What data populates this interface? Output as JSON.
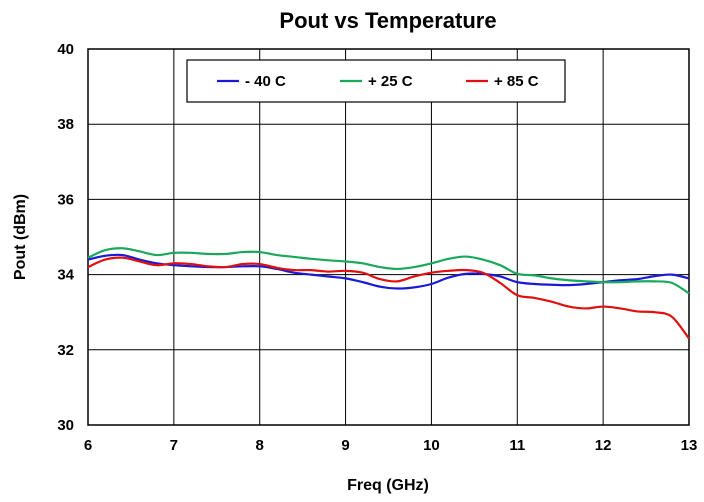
{
  "chart_data": {
    "type": "line",
    "title": "Pout vs Temperature",
    "xlabel": "Freq (GHz)",
    "ylabel": "Pout (dBm)",
    "xlim": [
      6,
      13
    ],
    "ylim": [
      30,
      40
    ],
    "xticks": [
      "6",
      "7",
      "8",
      "9",
      "10",
      "11",
      "12",
      "13"
    ],
    "yticks": [
      "30",
      "32",
      "34",
      "36",
      "38",
      "40"
    ],
    "grid": true,
    "legend_position": "top-center",
    "series": [
      {
        "name": "- 40 C",
        "color": "#1a1ad6",
        "x": [
          6.0,
          6.2,
          6.4,
          6.6,
          6.8,
          7.0,
          7.2,
          7.4,
          7.6,
          7.8,
          8.0,
          8.2,
          8.4,
          8.6,
          8.8,
          9.0,
          9.2,
          9.4,
          9.6,
          9.8,
          10.0,
          10.2,
          10.4,
          10.6,
          10.8,
          11.0,
          11.2,
          11.4,
          11.6,
          11.8,
          12.0,
          12.2,
          12.4,
          12.6,
          12.8,
          13.0
        ],
        "y": [
          34.4,
          34.5,
          34.52,
          34.4,
          34.3,
          34.25,
          34.22,
          34.2,
          34.2,
          34.22,
          34.22,
          34.15,
          34.05,
          34.0,
          33.95,
          33.9,
          33.8,
          33.68,
          33.63,
          33.66,
          33.75,
          33.92,
          34.02,
          34.02,
          33.95,
          33.8,
          33.75,
          33.73,
          33.72,
          33.75,
          33.8,
          33.85,
          33.88,
          33.96,
          34.0,
          33.9
        ]
      },
      {
        "name": "+ 25 C",
        "color": "#1aa85a",
        "x": [
          6.0,
          6.2,
          6.4,
          6.6,
          6.8,
          7.0,
          7.2,
          7.4,
          7.6,
          7.8,
          8.0,
          8.2,
          8.4,
          8.6,
          8.8,
          9.0,
          9.2,
          9.4,
          9.6,
          9.8,
          10.0,
          10.2,
          10.4,
          10.6,
          10.8,
          11.0,
          11.2,
          11.4,
          11.6,
          11.8,
          12.0,
          12.2,
          12.4,
          12.6,
          12.8,
          13.0
        ],
        "y": [
          34.45,
          34.65,
          34.7,
          34.62,
          34.52,
          34.58,
          34.58,
          34.55,
          34.55,
          34.6,
          34.6,
          34.52,
          34.47,
          34.42,
          34.38,
          34.35,
          34.3,
          34.2,
          34.15,
          34.2,
          34.3,
          34.42,
          34.48,
          34.4,
          34.25,
          34.02,
          33.98,
          33.9,
          33.85,
          33.82,
          33.8,
          33.8,
          33.82,
          33.82,
          33.78,
          33.5
        ]
      },
      {
        "name": "+ 85 C",
        "color": "#e01010",
        "x": [
          6.0,
          6.2,
          6.4,
          6.6,
          6.8,
          7.0,
          7.2,
          7.4,
          7.6,
          7.8,
          8.0,
          8.2,
          8.4,
          8.6,
          8.8,
          9.0,
          9.2,
          9.4,
          9.6,
          9.8,
          10.0,
          10.2,
          10.4,
          10.6,
          10.8,
          11.0,
          11.2,
          11.4,
          11.6,
          11.8,
          12.0,
          12.2,
          12.4,
          12.6,
          12.8,
          13.0
        ],
        "y": [
          34.2,
          34.4,
          34.45,
          34.35,
          34.25,
          34.3,
          34.28,
          34.22,
          34.2,
          34.28,
          34.28,
          34.18,
          34.12,
          34.12,
          34.08,
          34.1,
          34.05,
          33.88,
          33.82,
          33.95,
          34.05,
          34.1,
          34.12,
          34.05,
          33.78,
          33.45,
          33.38,
          33.28,
          33.15,
          33.1,
          33.15,
          33.1,
          33.02,
          33.0,
          32.88,
          32.3
        ]
      }
    ]
  }
}
